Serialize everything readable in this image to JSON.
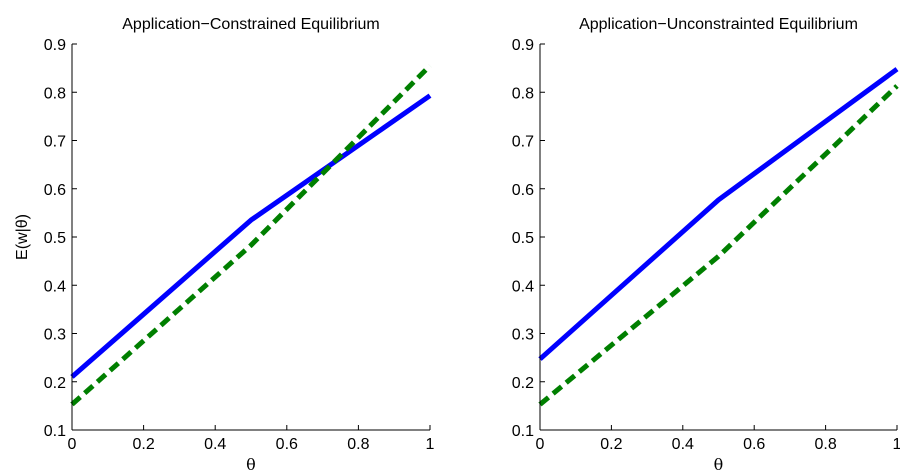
{
  "chart_data": [
    {
      "type": "line",
      "title": "Application−Constrained Equilibrium",
      "xlabel": "θ",
      "ylabel": "E(w|θ)",
      "xlim": [
        0,
        1
      ],
      "ylim": [
        0.1,
        0.9
      ],
      "xticks": [
        "0",
        "0.2",
        "0.4",
        "0.6",
        "0.8",
        "1"
      ],
      "yticks": [
        "0.1",
        "0.2",
        "0.3",
        "0.4",
        "0.5",
        "0.6",
        "0.7",
        "0.8",
        "0.9"
      ],
      "grid": false,
      "series": [
        {
          "color": "#0000ff",
          "style": "solid",
          "x": [
            0,
            0.5,
            1
          ],
          "y": [
            0.21,
            0.535,
            0.793
          ]
        },
        {
          "color": "#007f00",
          "style": "dashed",
          "x": [
            0,
            0.5,
            1
          ],
          "y": [
            0.153,
            0.483,
            0.855
          ]
        }
      ]
    },
    {
      "type": "line",
      "title": "Application−Unconstrainted Equilibrium",
      "xlabel": "θ",
      "ylabel": "",
      "xlim": [
        0,
        1
      ],
      "ylim": [
        0.1,
        0.9
      ],
      "xticks": [
        "0",
        "0.2",
        "0.4",
        "0.6",
        "0.8",
        "1"
      ],
      "yticks": [
        "0.1",
        "0.2",
        "0.3",
        "0.4",
        "0.5",
        "0.6",
        "0.7",
        "0.8",
        "0.9"
      ],
      "grid": false,
      "series": [
        {
          "color": "#0000ff",
          "style": "solid",
          "x": [
            0,
            0.5,
            1
          ],
          "y": [
            0.247,
            0.577,
            0.848
          ]
        },
        {
          "color": "#007f00",
          "style": "dashed",
          "x": [
            0,
            0.5,
            1
          ],
          "y": [
            0.153,
            0.46,
            0.813
          ]
        }
      ]
    }
  ]
}
